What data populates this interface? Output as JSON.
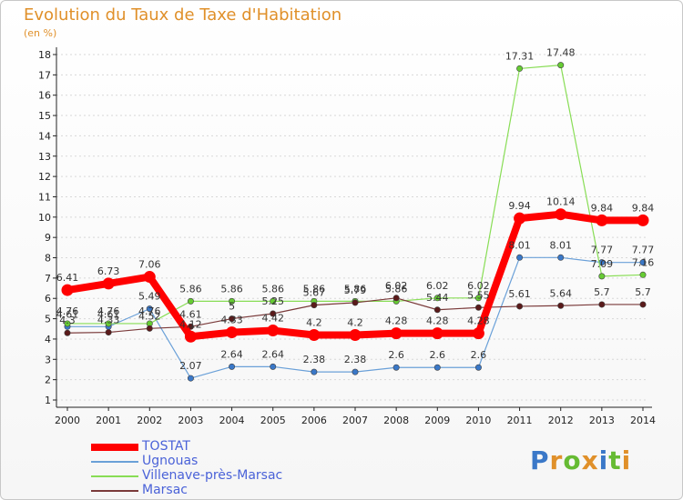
{
  "page": {
    "title": "Evolution du Taux de Taxe d'Habitation",
    "unit": "(en %)",
    "logo": "Proxiti"
  },
  "colors": {
    "title": "#e0902a",
    "axis": "#222222",
    "grid": "#d8d8d8"
  },
  "chart_data": {
    "type": "line",
    "x": [
      "2000",
      "2001",
      "2002",
      "2003",
      "2004",
      "2005",
      "2006",
      "2007",
      "2008",
      "2009",
      "2010",
      "2011",
      "2012",
      "2013",
      "2014"
    ],
    "ylim": [
      1,
      18
    ],
    "yticks": [
      1,
      2,
      3,
      4,
      5,
      6,
      7,
      8,
      9,
      10,
      11,
      12,
      13,
      14,
      15,
      16,
      17,
      18
    ],
    "grid": true,
    "legend_position": "bottom-left",
    "series": [
      {
        "name": "TOSTAT",
        "color": "#ff0000",
        "marker": "#ff0000",
        "width": 8,
        "values": [
          6.41,
          6.73,
          7.06,
          4.12,
          4.33,
          4.42,
          4.2,
          4.2,
          4.28,
          4.28,
          4.28,
          9.94,
          10.14,
          9.84,
          9.84
        ],
        "labels": [
          "6.41",
          "6.73",
          "7.06",
          "4.12",
          "4.33",
          "4.42",
          "4.2",
          "4.2",
          "4.28",
          "4.28",
          "4.28",
          "9.94",
          "10.14",
          "9.84",
          "9.84"
        ]
      },
      {
        "name": "Ugnouas",
        "color": "#6aa0d8",
        "marker": "#3a78c8",
        "width": 1.2,
        "values": [
          4.61,
          4.61,
          5.49,
          2.07,
          2.64,
          2.64,
          2.38,
          2.38,
          2.6,
          2.6,
          2.6,
          8.01,
          8.01,
          7.77,
          7.77
        ],
        "labels": [
          "4.61",
          "4.61",
          "5.49",
          "2.07",
          "2.64",
          "2.64",
          "2.38",
          "2.38",
          "2.6",
          "2.6",
          "2.6",
          "8.01",
          "8.01",
          "7.77",
          "7.77"
        ]
      },
      {
        "name": "Villenave-près-Marsac",
        "color": "#88dd55",
        "marker": "#66cc33",
        "width": 1.2,
        "values": [
          4.76,
          4.76,
          4.76,
          5.86,
          5.86,
          5.86,
          5.86,
          5.86,
          5.86,
          6.02,
          6.02,
          17.31,
          17.48,
          7.09,
          7.16
        ],
        "labels": [
          "4.76",
          "4.76",
          "4.76",
          "5.86",
          "5.86",
          "5.86",
          "5.86",
          "5.86",
          "5.86",
          "6.02",
          "6.02",
          "17.31",
          "17.48",
          "7.09",
          "7.16"
        ]
      },
      {
        "name": "Marsac",
        "color": "#7a3a3a",
        "marker": "#5a1a1a",
        "width": 1.2,
        "values": [
          4.3,
          4.33,
          4.52,
          4.61,
          5.0,
          5.25,
          5.67,
          5.79,
          6.02,
          5.44,
          5.55,
          5.61,
          5.64,
          5.7,
          5.7
        ],
        "labels": [
          "4.3",
          "4.33",
          "4.52",
          "4.61",
          "5",
          "5.25",
          "5.67",
          "5.79",
          "6.02",
          "5.44",
          "5.55",
          "5.61",
          "5.64",
          "5.7",
          "5.7"
        ]
      }
    ]
  }
}
